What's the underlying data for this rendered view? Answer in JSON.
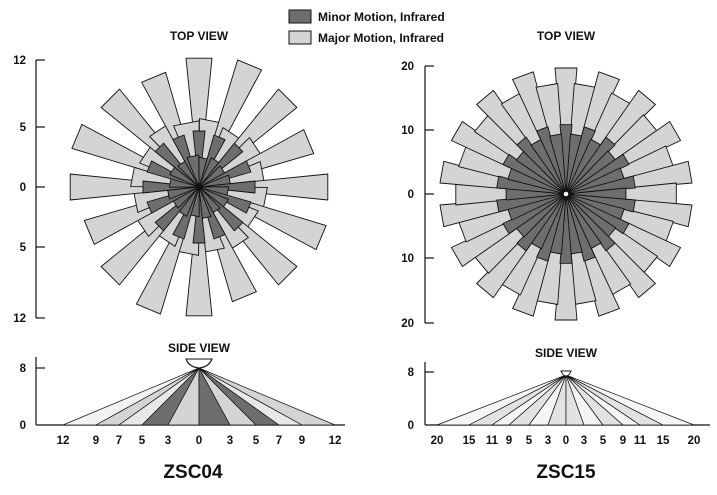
{
  "legend": {
    "minor": {
      "label": "Minor Motion, Infrared",
      "color": "#6e6e6e"
    },
    "major": {
      "label": "Major Motion, Infrared",
      "color": "#d4d4d4"
    }
  },
  "sensors": [
    {
      "model": "ZSC04",
      "top_view": {
        "title": "TOP VIEW",
        "y_ticks": [
          "12",
          "5",
          "0",
          "5",
          "12"
        ],
        "range_max": 12,
        "lobes": 32,
        "major_lengths": [
          11.5,
          6,
          11.8,
          5.6,
          11.2,
          6.2,
          10.6,
          5.8
        ],
        "minor_lengths": [
          5,
          2.6,
          4.8,
          2.8,
          5,
          2.6,
          4.8,
          2.8
        ]
      },
      "side_view": {
        "title": "SIDE VIEW",
        "y_ticks": [
          "8",
          "0"
        ],
        "mount_height": 8,
        "x_ticks": [
          "12",
          "9",
          "7",
          "5",
          "3",
          "0",
          "3",
          "5",
          "7",
          "9",
          "12"
        ]
      }
    },
    {
      "model": "ZSC15",
      "top_view": {
        "title": "TOP VIEW",
        "y_ticks": [
          "20",
          "10",
          "0",
          "10",
          "20"
        ],
        "range_max": 20,
        "lobes": 36,
        "major_lengths": [
          20,
          17.5
        ],
        "minor_lengths": [
          11,
          9.5
        ]
      },
      "side_view": {
        "title": "SIDE VIEW",
        "y_ticks": [
          "8",
          "0"
        ],
        "mount_height": 8,
        "x_ticks": [
          "20",
          "15",
          "11",
          "9",
          "5",
          "3",
          "0",
          "3",
          "5",
          "9",
          "11",
          "15",
          "20"
        ]
      }
    }
  ]
}
